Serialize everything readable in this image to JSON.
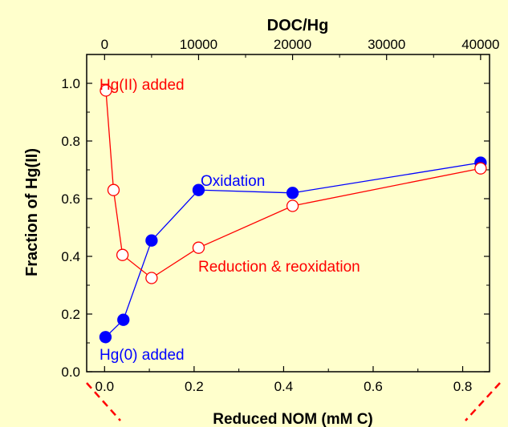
{
  "chart_data": {
    "type": "scatter",
    "top_axis": {
      "label": "DOC/Hg",
      "range": [
        0,
        40000
      ],
      "ticks": [
        0,
        10000,
        20000,
        30000,
        40000
      ],
      "tick_labels": [
        "0",
        "10000",
        "20000",
        "30000",
        "40000"
      ]
    },
    "x_axis": {
      "label": "Reduced NOM (mM C)",
      "range": [
        -0.04,
        0.86
      ],
      "ticks": [
        0.0,
        0.2,
        0.4,
        0.6,
        0.8
      ],
      "tick_labels": [
        "0.0",
        "0.2",
        "0.4",
        "0.6",
        "0.8"
      ]
    },
    "y_axis": {
      "label": "Fraction of Hg(II)",
      "range": [
        0.0,
        1.1
      ],
      "ticks": [
        0.0,
        0.2,
        0.4,
        0.6,
        0.8,
        1.0
      ],
      "tick_labels": [
        "0.0",
        "0.2",
        "0.4",
        "0.6",
        "0.8",
        "1.0"
      ]
    },
    "series": [
      {
        "marker": "filled-circle",
        "color": "#0000ff",
        "x": [
          0.002,
          0.042,
          0.105,
          0.21,
          0.42,
          0.84
        ],
        "y": [
          0.12,
          0.18,
          0.455,
          0.63,
          0.62,
          0.725
        ]
      },
      {
        "marker": "open-circle",
        "color": "#ff0000",
        "x": [
          0.003,
          0.02,
          0.04,
          0.105,
          0.21,
          0.42,
          0.84
        ],
        "y": [
          0.975,
          0.63,
          0.405,
          0.325,
          0.43,
          0.575,
          0.705
        ]
      }
    ],
    "annotations": [
      {
        "text": "Hg(II) added",
        "color": "#ff0000"
      },
      {
        "text": "Oxidation",
        "color": "#0000ff"
      },
      {
        "text": "Reduction & reoxidation",
        "color": "#ff0000"
      },
      {
        "text": "Hg(0) added",
        "color": "#0000ff"
      }
    ],
    "colors": {
      "background": "#ffffcc",
      "axis": "#000000",
      "break_marks": "#ff0000"
    },
    "grid": false,
    "legend": "none"
  }
}
